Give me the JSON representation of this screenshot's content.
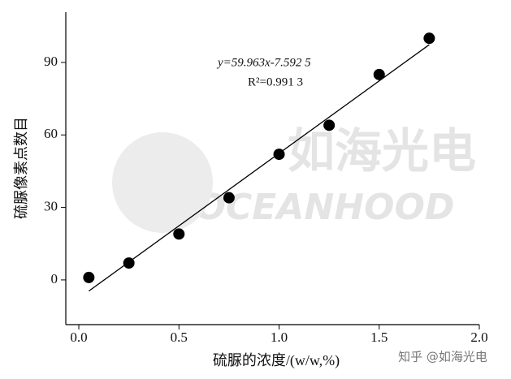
{
  "chart_data": {
    "type": "scatter",
    "x": [
      0.05,
      0.25,
      0.5,
      0.75,
      1.0,
      1.25,
      1.5,
      1.75
    ],
    "values": [
      1,
      7,
      19,
      34,
      52,
      64,
      85,
      100
    ],
    "color": "#000000",
    "x_label": "硫脲的浓度/(w/w,%)",
    "y_label": "硫脲像素点数目",
    "xlim": [
      -0.065,
      2.0
    ],
    "ylim": [
      -18.5,
      110.8
    ],
    "xticks": [
      {
        "value": 0,
        "label": "0.0"
      },
      0.5,
      {
        "value": 1,
        "label": "1.0"
      },
      1.5,
      {
        "value": 2,
        "label": "2.0"
      }
    ],
    "yticks": [
      0,
      30,
      60,
      90
    ],
    "fit": {
      "slope": 59.963,
      "intercept": -7.5925,
      "xrange": [
        0.05,
        1.75
      ]
    },
    "annotations": [
      "y=59.963x-7.592 5",
      "R²=0.991 3"
    ],
    "watermark": {
      "cn": "如海光电",
      "en": "OCEANHOOD",
      "credit": "知乎 @如海光电"
    }
  }
}
